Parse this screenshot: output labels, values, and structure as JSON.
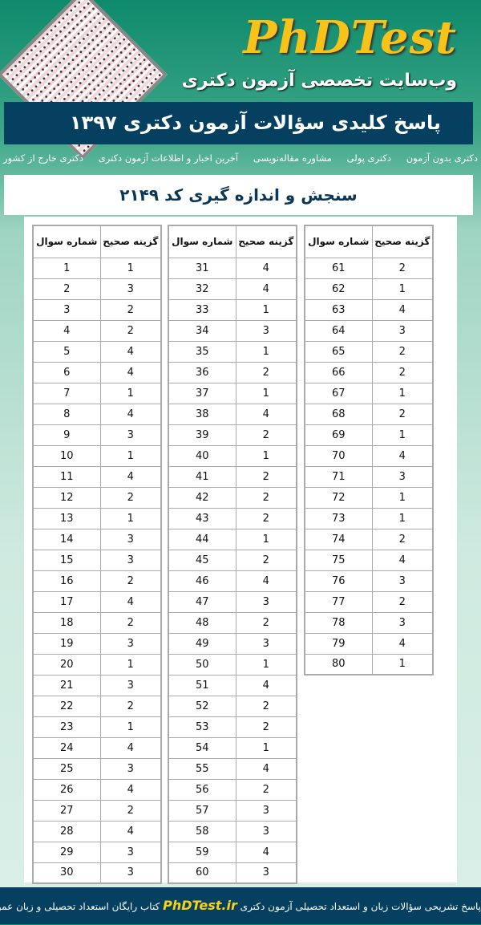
{
  "header": {
    "logo": "PhDTest",
    "subtitle": "وب‌سایت تخصصی آزمون دکتری",
    "banner": "پاسخ کلیدی سؤالات آزمون دکتری ۱۳۹۷"
  },
  "nav": {
    "items": [
      "دکتری بدون آزمون",
      "دکتری پولی",
      "مشاوره مقاله‌نویسی",
      "آخرین اخبار و اطلاعات آزمون دکتری",
      "دکتری خارج از کشور"
    ]
  },
  "page_title": "سنجش و اندازه گیری کد ۲۱۴۹",
  "table": {
    "headers": {
      "question": "شماره سوال",
      "answer": "گزینه صحیح"
    },
    "answers": [
      1,
      3,
      2,
      2,
      4,
      4,
      1,
      4,
      3,
      1,
      4,
      2,
      1,
      3,
      3,
      2,
      4,
      2,
      3,
      1,
      3,
      2,
      1,
      4,
      3,
      4,
      2,
      4,
      3,
      3,
      4,
      4,
      1,
      3,
      1,
      2,
      1,
      4,
      2,
      1,
      2,
      2,
      2,
      1,
      2,
      4,
      3,
      2,
      3,
      1,
      4,
      2,
      2,
      1,
      4,
      2,
      3,
      3,
      4,
      3,
      2,
      1,
      4,
      3,
      2,
      2,
      1,
      2,
      1,
      4,
      3,
      1,
      1,
      2,
      4,
      3,
      2,
      3,
      4,
      1
    ]
  },
  "footer": {
    "text_before": "پاسخ تشریحی سؤالات زبان و استعداد تحصیلی آزمون دکتری",
    "brand": "PhDTest.ir",
    "text_after": "کتاب رایگان استعداد تحصیلی و زبان عمومی"
  },
  "colors": {
    "banner": "#054060",
    "logo": "#f7c21a"
  }
}
